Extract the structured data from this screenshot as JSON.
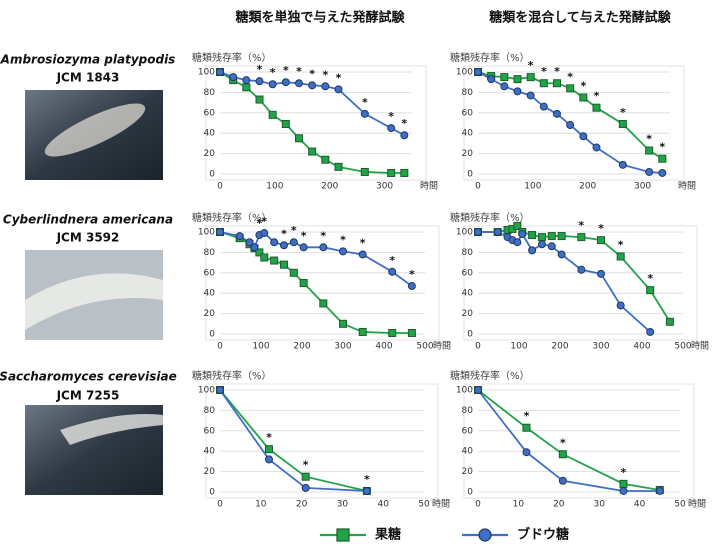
{
  "headers": [
    "糖類を単独で与えた発酵試験",
    "糖類を混合して与えた発酵試験"
  ],
  "organisms": [
    {
      "name": "Ambrosiozyma platypodis",
      "strain": "JCM 1843"
    },
    {
      "name": "Cyberlindnera americana",
      "strain": "JCM 3592"
    },
    {
      "name": "Saccharomyces cerevisiae",
      "strain": "JCM 7255"
    }
  ],
  "chart_data": [
    {
      "type": "line",
      "ylabel": "糖類残存率（%）",
      "xlabel": "時間",
      "x": [
        0,
        24,
        48,
        72,
        96,
        120,
        144,
        168,
        192,
        216,
        264,
        312,
        336
      ],
      "series": [
        {
          "name": "果糖",
          "color": "#22a34a",
          "marker": "square",
          "values": [
            100,
            92,
            85,
            73,
            58,
            49,
            35,
            22,
            14,
            7,
            2,
            1,
            1
          ]
        },
        {
          "name": "ブドウ糖",
          "color": "#3f6fc4",
          "marker": "circle",
          "values": [
            100,
            95,
            92,
            91,
            88,
            90,
            89,
            87,
            86,
            83,
            59,
            45,
            38
          ]
        }
      ],
      "xlim": [
        0,
        350
      ],
      "xticks": [
        0,
        100,
        200,
        300
      ],
      "ylim": [
        0,
        100
      ],
      "yticks": [
        0,
        20,
        40,
        60,
        80,
        100
      ],
      "grid": true,
      "significant": [
        3,
        4,
        5,
        6,
        7,
        8,
        9,
        10,
        11,
        12
      ],
      "significance_label": "*"
    },
    {
      "type": "line",
      "ylabel": "糖類残存率（%）",
      "xlabel": "時間",
      "x": [
        0,
        24,
        48,
        72,
        96,
        120,
        144,
        168,
        192,
        216,
        264,
        312,
        336
      ],
      "series": [
        {
          "name": "果糖",
          "color": "#22a34a",
          "marker": "square",
          "values": [
            100,
            96,
            95,
            93,
            95,
            89,
            89,
            84,
            75,
            65,
            49,
            23,
            15
          ]
        },
        {
          "name": "ブドウ糖",
          "color": "#3f6fc4",
          "marker": "circle",
          "values": [
            100,
            93,
            86,
            81,
            77,
            66,
            59,
            48,
            37,
            26,
            9,
            2,
            1
          ]
        }
      ],
      "xlim": [
        0,
        350
      ],
      "xticks": [
        0,
        100,
        200,
        300
      ],
      "ylim": [
        0,
        100
      ],
      "yticks": [
        0,
        20,
        40,
        60,
        80,
        100
      ],
      "grid": true,
      "significant": [
        4,
        5,
        6,
        7,
        8,
        9,
        10,
        11,
        12
      ],
      "significance_label": "*"
    },
    {
      "type": "line",
      "ylabel": "糖類残存率（%）",
      "xlabel": "時間",
      "x": [
        0,
        48,
        72,
        84,
        96,
        108,
        132,
        156,
        180,
        204,
        252,
        300,
        348,
        420,
        468
      ],
      "series": [
        {
          "name": "果糖",
          "color": "#22a34a",
          "marker": "square",
          "values": [
            100,
            94,
            88,
            84,
            80,
            75,
            72,
            68,
            60,
            50,
            30,
            10,
            2,
            1,
            1
          ]
        },
        {
          "name": "ブドウ糖",
          "color": "#3f6fc4",
          "marker": "circle",
          "values": [
            100,
            96,
            90,
            85,
            97,
            99,
            90,
            87,
            90,
            85,
            85,
            81,
            78,
            61,
            47
          ]
        }
      ],
      "xlim": [
        0,
        500
      ],
      "xticks": [
        0,
        100,
        200,
        300,
        400,
        500
      ],
      "ylim": [
        0,
        100
      ],
      "yticks": [
        0,
        20,
        40,
        60,
        80,
        100
      ],
      "grid": true,
      "significant": [
        4,
        5,
        7,
        8,
        9,
        10,
        11,
        12,
        13,
        14
      ],
      "significance_label": "*"
    },
    {
      "type": "line",
      "ylabel": "糖類残存率（%）",
      "xlabel": "時間",
      "x": [
        0,
        48,
        72,
        84,
        96,
        108,
        132,
        156,
        180,
        204,
        252,
        300,
        348,
        420,
        468
      ],
      "series": [
        {
          "name": "果糖",
          "color": "#22a34a",
          "marker": "square",
          "values": [
            100,
            100,
            102,
            103,
            106,
            100,
            97,
            95,
            96,
            96,
            95,
            92,
            76,
            43,
            12
          ]
        },
        {
          "name": "ブドウ糖",
          "color": "#3f6fc4",
          "marker": "circle",
          "values": [
            100,
            100,
            95,
            92,
            90,
            98,
            82,
            88,
            86,
            78,
            63,
            59,
            28,
            2,
            null
          ]
        }
      ],
      "xlim": [
        0,
        500
      ],
      "xticks": [
        0,
        100,
        200,
        300,
        400,
        500
      ],
      "ylim": [
        0,
        100
      ],
      "yticks": [
        0,
        20,
        40,
        60,
        80,
        100
      ],
      "grid": true,
      "significant": [
        10,
        11,
        12,
        13
      ],
      "significance_label": "*"
    },
    {
      "type": "line",
      "ylabel": "糖類残存率（%）",
      "xlabel": "時間",
      "x": [
        0,
        12,
        21,
        36,
        45
      ],
      "series": [
        {
          "name": "果糖",
          "color": "#22a34a",
          "marker": "square",
          "values": [
            100,
            42,
            15,
            1,
            null
          ]
        },
        {
          "name": "ブドウ糖",
          "color": "#3f6fc4",
          "marker": "circle",
          "values": [
            100,
            32,
            4,
            1,
            null
          ]
        }
      ],
      "xlim": [
        0,
        50
      ],
      "xticks": [
        0,
        10,
        20,
        30,
        40,
        50
      ],
      "ylim": [
        0,
        100
      ],
      "yticks": [
        0,
        20,
        40,
        60,
        80,
        100
      ],
      "grid": true,
      "significant": [
        1,
        2,
        3
      ],
      "significance_label": "*"
    },
    {
      "type": "line",
      "ylabel": "糖類残存率（%）",
      "xlabel": "時間",
      "x": [
        0,
        12,
        21,
        36,
        45
      ],
      "series": [
        {
          "name": "果糖",
          "color": "#22a34a",
          "marker": "square",
          "values": [
            100,
            63,
            37,
            8,
            2
          ]
        },
        {
          "name": "ブドウ糖",
          "color": "#3f6fc4",
          "marker": "circle",
          "values": [
            100,
            39,
            11,
            1,
            1
          ]
        }
      ],
      "xlim": [
        0,
        50
      ],
      "xticks": [
        0,
        10,
        20,
        30,
        40,
        50
      ],
      "ylim": [
        0,
        100
      ],
      "yticks": [
        0,
        20,
        40,
        60,
        80,
        100
      ],
      "grid": true,
      "significant": [
        1,
        2,
        3
      ],
      "significance_label": "*"
    }
  ]
}
